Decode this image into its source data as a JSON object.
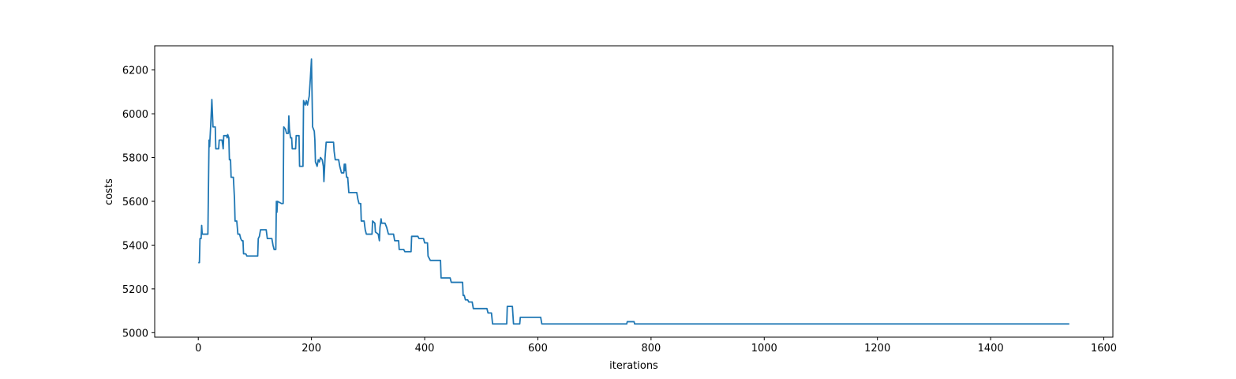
{
  "chart_data": {
    "type": "line",
    "xlabel": "iterations",
    "ylabel": "costs",
    "x": [
      0,
      2,
      3,
      5,
      6,
      7,
      17,
      19,
      20,
      22,
      24,
      26,
      30,
      31,
      36,
      37,
      42,
      44,
      45,
      50,
      51,
      52,
      54,
      55,
      57,
      58,
      62,
      64,
      65,
      68,
      70,
      73,
      75,
      77,
      79,
      80,
      84,
      86,
      105,
      106,
      108,
      110,
      120,
      122,
      130,
      132,
      134,
      137,
      138,
      139,
      140,
      147,
      150,
      151,
      154,
      156,
      159,
      160,
      161,
      163,
      165,
      166,
      172,
      173,
      178,
      179,
      185,
      186,
      189,
      191,
      193,
      196,
      198,
      200,
      202,
      205,
      206,
      207,
      210,
      212,
      214,
      216,
      219,
      221,
      222,
      224,
      226,
      239,
      240,
      242,
      248,
      250,
      253,
      257,
      258,
      259,
      260,
      262,
      264,
      266,
      280,
      282,
      284,
      287,
      288,
      293,
      295,
      297,
      307,
      308,
      312,
      313,
      318,
      320,
      321,
      323,
      324,
      330,
      333,
      336,
      345,
      347,
      354,
      355,
      363,
      365,
      376,
      377,
      388,
      390,
      398,
      400,
      405,
      406,
      408,
      410,
      428,
      429,
      445,
      447,
      467,
      468,
      470,
      472,
      476,
      478,
      484,
      486,
      510,
      512,
      518,
      520,
      545,
      546,
      555,
      557,
      568,
      569,
      605,
      607,
      757,
      758,
      770,
      771,
      1539
    ],
    "series": [
      {
        "color": "#1f77b4",
        "values": [
          5320,
          5320,
          5430,
          5430,
          5490,
          5450,
          5450,
          5880,
          5850,
          5950,
          6065,
          5940,
          5940,
          5840,
          5840,
          5880,
          5880,
          5840,
          5900,
          5900,
          5890,
          5905,
          5890,
          5790,
          5790,
          5710,
          5710,
          5610,
          5510,
          5510,
          5450,
          5450,
          5430,
          5420,
          5420,
          5360,
          5360,
          5350,
          5350,
          5430,
          5440,
          5470,
          5470,
          5430,
          5430,
          5400,
          5380,
          5380,
          5600,
          5550,
          5600,
          5590,
          5590,
          5940,
          5930,
          5910,
          5910,
          5990,
          5930,
          5890,
          5890,
          5840,
          5840,
          5900,
          5900,
          5760,
          5760,
          6060,
          6040,
          6060,
          6040,
          6080,
          6160,
          6250,
          5940,
          5920,
          5880,
          5780,
          5760,
          5790,
          5780,
          5800,
          5790,
          5760,
          5690,
          5800,
          5870,
          5870,
          5830,
          5790,
          5790,
          5760,
          5730,
          5730,
          5770,
          5740,
          5770,
          5710,
          5710,
          5640,
          5640,
          5610,
          5590,
          5590,
          5510,
          5510,
          5470,
          5450,
          5450,
          5510,
          5500,
          5460,
          5450,
          5420,
          5480,
          5520,
          5500,
          5500,
          5480,
          5450,
          5450,
          5420,
          5420,
          5380,
          5380,
          5370,
          5370,
          5440,
          5440,
          5430,
          5430,
          5410,
          5410,
          5350,
          5340,
          5330,
          5330,
          5250,
          5250,
          5230,
          5230,
          5170,
          5170,
          5150,
          5150,
          5140,
          5140,
          5110,
          5110,
          5090,
          5090,
          5040,
          5040,
          5120,
          5120,
          5040,
          5040,
          5070,
          5070,
          5040,
          5040,
          5050,
          5050,
          5040,
          5040
        ]
      }
    ],
    "xlim": [
      -77,
      1616
    ],
    "ylim": [
      4979.5,
      6310.5
    ],
    "xticks": [
      0,
      200,
      400,
      600,
      800,
      1000,
      1200,
      1400,
      1600
    ],
    "yticks": [
      5000,
      5200,
      5400,
      5600,
      5800,
      6000,
      6200
    ]
  }
}
